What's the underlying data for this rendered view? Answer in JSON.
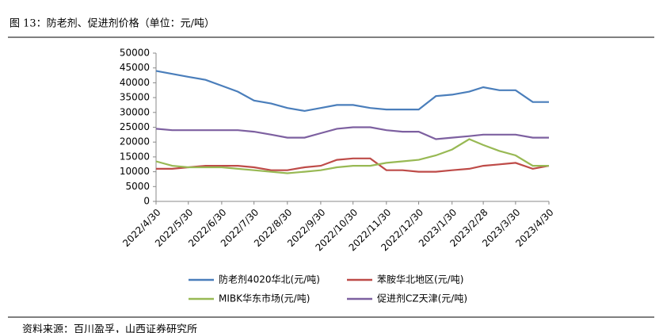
{
  "header": {
    "title": "图 13：防老剂、促进剂价格（单位：元/吨）"
  },
  "chart_data": {
    "type": "line",
    "x": [
      "2022/4/30",
      "2022/5/15",
      "2022/5/30",
      "2022/6/15",
      "2022/6/30",
      "2022/7/15",
      "2022/7/30",
      "2022/8/15",
      "2022/8/30",
      "2022/9/15",
      "2022/9/30",
      "2022/10/15",
      "2022/10/30",
      "2022/11/15",
      "2022/11/30",
      "2022/12/15",
      "2022/12/30",
      "2023/1/15",
      "2023/1/30",
      "2023/2/15",
      "2023/2/28",
      "2023/3/15",
      "2023/3/30",
      "2023/4/15",
      "2023/4/30"
    ],
    "series": [
      {
        "name": "防老剂4020华北(元/吨)",
        "color": "#4a7ebb",
        "values": [
          44000,
          43000,
          42000,
          41000,
          39000,
          37000,
          34000,
          33000,
          31500,
          30500,
          31500,
          32500,
          32500,
          31500,
          31000,
          31000,
          31000,
          35500,
          36000,
          37000,
          38500,
          37500,
          37500,
          33500,
          33500
        ]
      },
      {
        "name": "苯胺华北地区(元/吨)",
        "color": "#be4b48",
        "values": [
          11000,
          11000,
          11500,
          12000,
          12000,
          12000,
          11500,
          10500,
          10500,
          11500,
          12000,
          14000,
          14500,
          14500,
          10500,
          10500,
          10000,
          10000,
          10500,
          11000,
          12000,
          12500,
          13000,
          11000,
          12000
        ]
      },
      {
        "name": "MIBK华东市场(元/吨)",
        "color": "#98b954",
        "values": [
          13500,
          12000,
          11500,
          11500,
          11500,
          11000,
          10500,
          10000,
          9500,
          10000,
          10500,
          11500,
          12000,
          12000,
          13000,
          13500,
          14000,
          15500,
          17500,
          21000,
          19000,
          17000,
          15500,
          12000,
          12000
        ]
      },
      {
        "name": "促进剂CZ天津(元/吨)",
        "color": "#7d60a0",
        "values": [
          24500,
          24000,
          24000,
          24000,
          24000,
          24000,
          23500,
          22500,
          21500,
          21500,
          23000,
          24500,
          25000,
          25000,
          24000,
          23500,
          23500,
          21000,
          21500,
          22000,
          22500,
          22500,
          22500,
          21500,
          21500
        ]
      }
    ],
    "ylim": [
      0,
      50000
    ],
    "yticks": [
      0,
      5000,
      10000,
      15000,
      20000,
      25000,
      30000,
      35000,
      40000,
      45000,
      50000
    ],
    "xticks": [
      "2022/4/30",
      "2022/5/30",
      "2022/6/30",
      "2022/7/30",
      "2022/8/30",
      "2022/9/30",
      "2022/10/30",
      "2022/11/30",
      "2022/12/30",
      "2023/1/30",
      "2023/2/28",
      "2023/3/30",
      "2023/4/30"
    ],
    "source": "资料来源：百川盈孚，山西证券研究所"
  }
}
